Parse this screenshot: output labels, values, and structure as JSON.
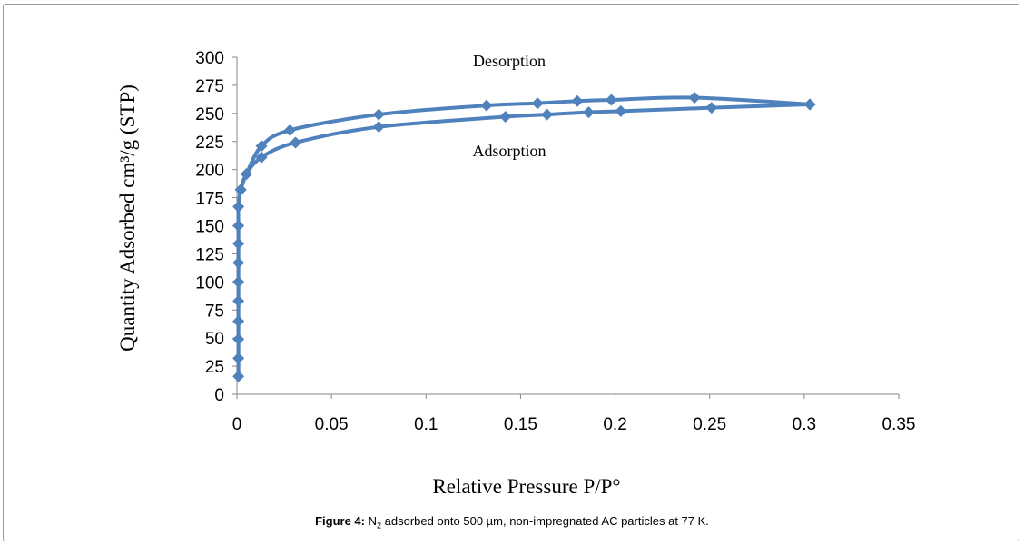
{
  "chart_data": {
    "type": "line",
    "ylabel": "Quantity Adsorbed cm³/g (STP)",
    "xlabel": "Relative Pressure P/P°",
    "xlim": [
      0,
      0.35
    ],
    "ylim": [
      0,
      300
    ],
    "xticks": [
      "0",
      "0.05",
      "0.1",
      "0.15",
      "0.2",
      "0.25",
      "0.3",
      "0.35"
    ],
    "yticks": [
      "0",
      "25",
      "50",
      "75",
      "100",
      "125",
      "150",
      "175",
      "200",
      "225",
      "250",
      "275",
      "300"
    ],
    "grid": false,
    "color": "#4f81bd",
    "annotations": [
      "Desorption",
      "Adsorption"
    ],
    "series": [
      {
        "x": [
          0.0008,
          0.0008,
          0.0008,
          0.0008,
          0.0008,
          0.0008,
          0.0008,
          0.0008,
          0.0008,
          0.0008,
          0.002,
          0.005,
          0.013,
          0.031,
          0.075,
          0.142,
          0.164,
          0.186,
          0.203,
          0.251,
          0.303
        ],
        "y": [
          16,
          32,
          49,
          65,
          83,
          100,
          117,
          134,
          150,
          167,
          182,
          196,
          211,
          224,
          238,
          247,
          249,
          251,
          252,
          255,
          258
        ]
      },
      {
        "x": [
          0.303,
          0.242,
          0.198,
          0.18,
          0.159,
          0.132,
          0.075,
          0.028,
          0.013,
          0.005,
          0.002
        ],
        "y": [
          258,
          264,
          262,
          261,
          259,
          257,
          249,
          235,
          221,
          196,
          182
        ]
      }
    ]
  },
  "caption": {
    "label": "Figure 4:",
    "formula_base": "N",
    "formula_sub": "2",
    "text": " adsorbed onto 500 µm, non-impregnated AC particles at 77 K."
  }
}
